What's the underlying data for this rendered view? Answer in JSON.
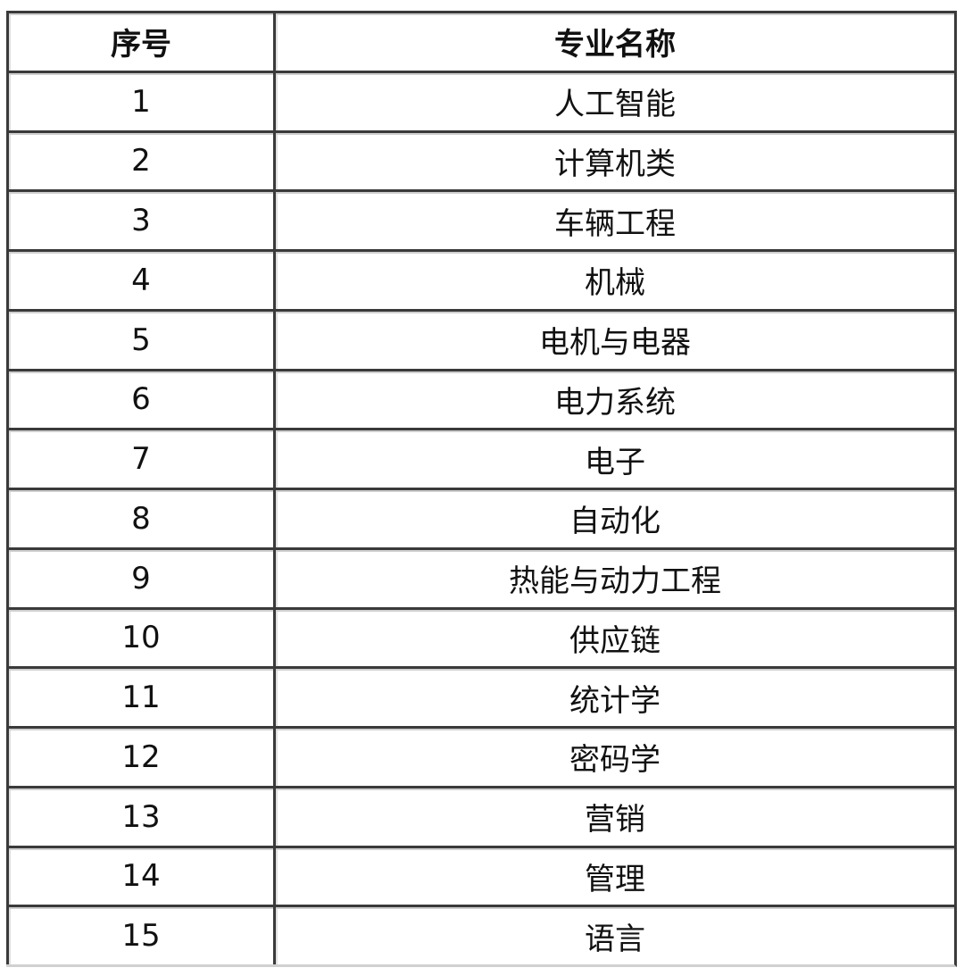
{
  "table": {
    "headers": [
      "序号",
      "专业名称"
    ],
    "rows": [
      [
        "1",
        "人工智能"
      ],
      [
        "2",
        "计算机类"
      ],
      [
        "3",
        "车辆工程"
      ],
      [
        "4",
        "机械"
      ],
      [
        "5",
        "电机与电器"
      ],
      [
        "6",
        "电力系统"
      ],
      [
        "7",
        "电子"
      ],
      [
        "8",
        "自动化"
      ],
      [
        "9",
        "热能与动力工程"
      ],
      [
        "10",
        "供应链"
      ],
      [
        "11",
        "统计学"
      ],
      [
        "12",
        "密码学"
      ],
      [
        "13",
        "营销"
      ],
      [
        "14",
        "管理"
      ],
      [
        "15",
        "语言"
      ]
    ]
  }
}
